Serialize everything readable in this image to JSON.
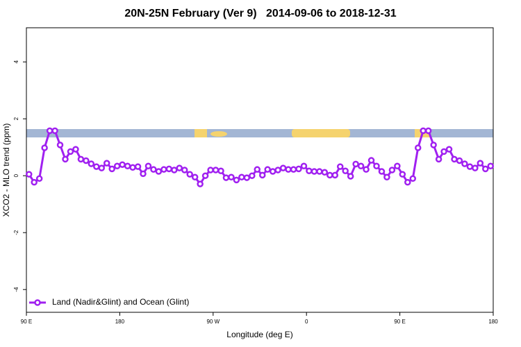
{
  "chart_data": {
    "type": "line",
    "title": "20N-25N February (Ver 9)   2014-09-06 to 2018-12-31",
    "xlabel": "Longitude (deg E)",
    "ylabel": "XCO2 - MLO trend (ppm)",
    "x": [
      92.5,
      97.5,
      102.5,
      107.5,
      112.5,
      117.5,
      122.5,
      127.5,
      132.5,
      137.5,
      142.5,
      147.5,
      152.5,
      157.5,
      162.5,
      167.5,
      172.5,
      177.5,
      182.5,
      187.5,
      192.5,
      197.5,
      202.5,
      207.5,
      212.5,
      217.5,
      222.5,
      227.5,
      232.5,
      237.5,
      242.5,
      247.5,
      252.5,
      257.5,
      262.5,
      267.5,
      272.5,
      277.5,
      282.5,
      287.5,
      292.5,
      297.5,
      302.5,
      307.5,
      312.5,
      317.5,
      322.5,
      327.5,
      332.5,
      337.5,
      342.5,
      347.5,
      352.5,
      357.5,
      362.5,
      367.5,
      372.5,
      377.5,
      382.5,
      387.5,
      392.5,
      397.5,
      402.5,
      407.5,
      412.5,
      417.5,
      422.5,
      427.5,
      432.5,
      437.5,
      442.5,
      447.5,
      452.5,
      457.5,
      462.5,
      467.5,
      472.5,
      477.5,
      482.5,
      487.5,
      492.5,
      497.5,
      502.5,
      507.5,
      512.5,
      517.5,
      522.5,
      527.5,
      532.5,
      537.5
    ],
    "series": [
      {
        "name": "Land (Nadir&Glint) and Ocean (Glint)",
        "color": "#a020f0",
        "values": [
          0.05,
          -0.23,
          -0.1,
          0.98,
          1.58,
          1.58,
          1.08,
          0.58,
          0.85,
          0.93,
          0.58,
          0.53,
          0.42,
          0.32,
          0.27,
          0.44,
          0.24,
          0.34,
          0.39,
          0.34,
          0.29,
          0.32,
          0.07,
          0.34,
          0.22,
          0.15,
          0.22,
          0.24,
          0.2,
          0.27,
          0.2,
          0.05,
          -0.05,
          -0.29,
          0,
          0.2,
          0.2,
          0.17,
          -0.07,
          -0.05,
          -0.15,
          -0.05,
          -0.07,
          0,
          0.22,
          0.02,
          0.22,
          0.15,
          0.2,
          0.27,
          0.22,
          0.22,
          0.24,
          0.34,
          0.17,
          0.15,
          0.15,
          0.12,
          0.02,
          0.02,
          0.32,
          0.17,
          -0.02,
          0.41,
          0.34,
          0.22,
          0.54,
          0.34,
          0.15,
          -0.05,
          0.2,
          0.34,
          0.05,
          -0.23,
          -0.1,
          0.98,
          1.58,
          1.58,
          1.08,
          0.58,
          0.85,
          0.93,
          0.58,
          0.53,
          0.42,
          0.32,
          0.27,
          0.44,
          0.24,
          0.34
        ]
      }
    ],
    "xlim": [
      90,
      540
    ],
    "xticks": [
      {
        "value": 90,
        "label": "90 E"
      },
      {
        "value": 180,
        "label": "180"
      },
      {
        "value": 270,
        "label": "90 W"
      },
      {
        "value": 360,
        "label": "0"
      },
      {
        "value": 450,
        "label": "90 E"
      },
      {
        "value": 540,
        "label": "180"
      }
    ],
    "ylim": [
      -4.8,
      5.2
    ],
    "yticks": [
      -4,
      -2,
      0,
      2,
      4
    ],
    "legend": "bottom left"
  }
}
